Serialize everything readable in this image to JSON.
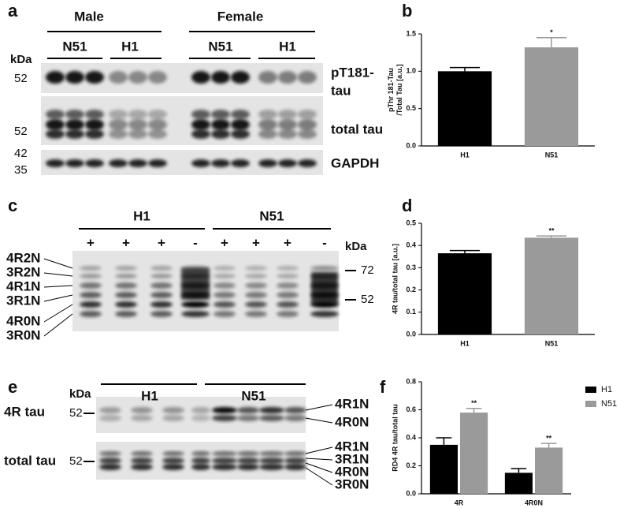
{
  "panel_a": {
    "letter": "a",
    "groups": [
      "Male",
      "Female"
    ],
    "lanes": [
      "N51",
      "H1",
      "N51",
      "H1"
    ],
    "unit": "kDa",
    "markers": [
      "52",
      "52",
      "42",
      "35"
    ],
    "rows": [
      "pT181-",
      "tau",
      "total tau",
      "GAPDH"
    ]
  },
  "panel_c": {
    "letter": "c",
    "groups": [
      "H1",
      "N51"
    ],
    "lanes": [
      "+",
      "+",
      "+",
      "-",
      "+",
      "+",
      "+",
      "-"
    ],
    "unit": "kDa",
    "markers": [
      "72",
      "52"
    ],
    "isoforms": [
      "4R2N",
      "3R2N",
      "4R1N",
      "3R1N",
      "4R0N",
      "3R0N"
    ]
  },
  "panel_e": {
    "letter": "e",
    "groups": [
      "H1",
      "N51"
    ],
    "unit": "kDa",
    "rows": [
      "4R tau",
      "total tau"
    ],
    "markers": [
      "52",
      "52"
    ],
    "isoforms": [
      "4R1N",
      "4R0N",
      "4R1N",
      "3R1N",
      "4R0N",
      "3R0N"
    ]
  },
  "chart_data": [
    {
      "type": "bar",
      "letter": "b",
      "ylabel": [
        "pThr 181-Tau",
        "/Total Tau [a.u.]"
      ],
      "categories": [
        "H1",
        "N51"
      ],
      "values": [
        1.0,
        1.32
      ],
      "errors": [
        0.05,
        0.13
      ],
      "colors": [
        "#000000",
        "#9a9a9a"
      ],
      "significance": [
        null,
        "*"
      ],
      "ylim": [
        0,
        1.5
      ],
      "yticks": [
        {
          "value": 0,
          "label": "0.0"
        },
        {
          "value": 0.5,
          "label": "0.5"
        },
        {
          "value": 1,
          "label": "1.0"
        },
        {
          "value": 1.5,
          "label": "1.5"
        }
      ]
    },
    {
      "type": "bar",
      "letter": "d",
      "ylabel": [
        "4R tau/total tau [a.u.]"
      ],
      "categories": [
        "H1",
        "N51"
      ],
      "values": [
        0.365,
        0.435
      ],
      "errors": [
        0.012,
        0.008
      ],
      "colors": [
        "#000000",
        "#9a9a9a"
      ],
      "significance": [
        null,
        "**"
      ],
      "ylim": [
        0,
        0.5
      ],
      "yticks": [
        {
          "value": 0,
          "label": "0.0"
        },
        0.1,
        0.2,
        0.3,
        0.4,
        0.5
      ]
    },
    {
      "type": "grouped-bar",
      "letter": "f",
      "ylabel": [
        "RD4 4R tau/total tau"
      ],
      "categories": [
        "4R",
        "4R0N"
      ],
      "series": [
        {
          "name": "H1",
          "color": "#000000",
          "values": [
            0.35,
            0.15
          ],
          "errors": [
            0.05,
            0.03
          ]
        },
        {
          "name": "N51",
          "color": "#9a9a9a",
          "values": [
            0.58,
            0.33
          ],
          "errors": [
            0.03,
            0.03
          ],
          "significance": [
            "**",
            "**"
          ]
        }
      ],
      "ylim": [
        0,
        0.8
      ],
      "yticks": [
        {
          "value": 0,
          "label": "0.0"
        },
        0.2,
        0.4,
        0.6,
        0.8
      ],
      "legend": "top-right"
    }
  ]
}
